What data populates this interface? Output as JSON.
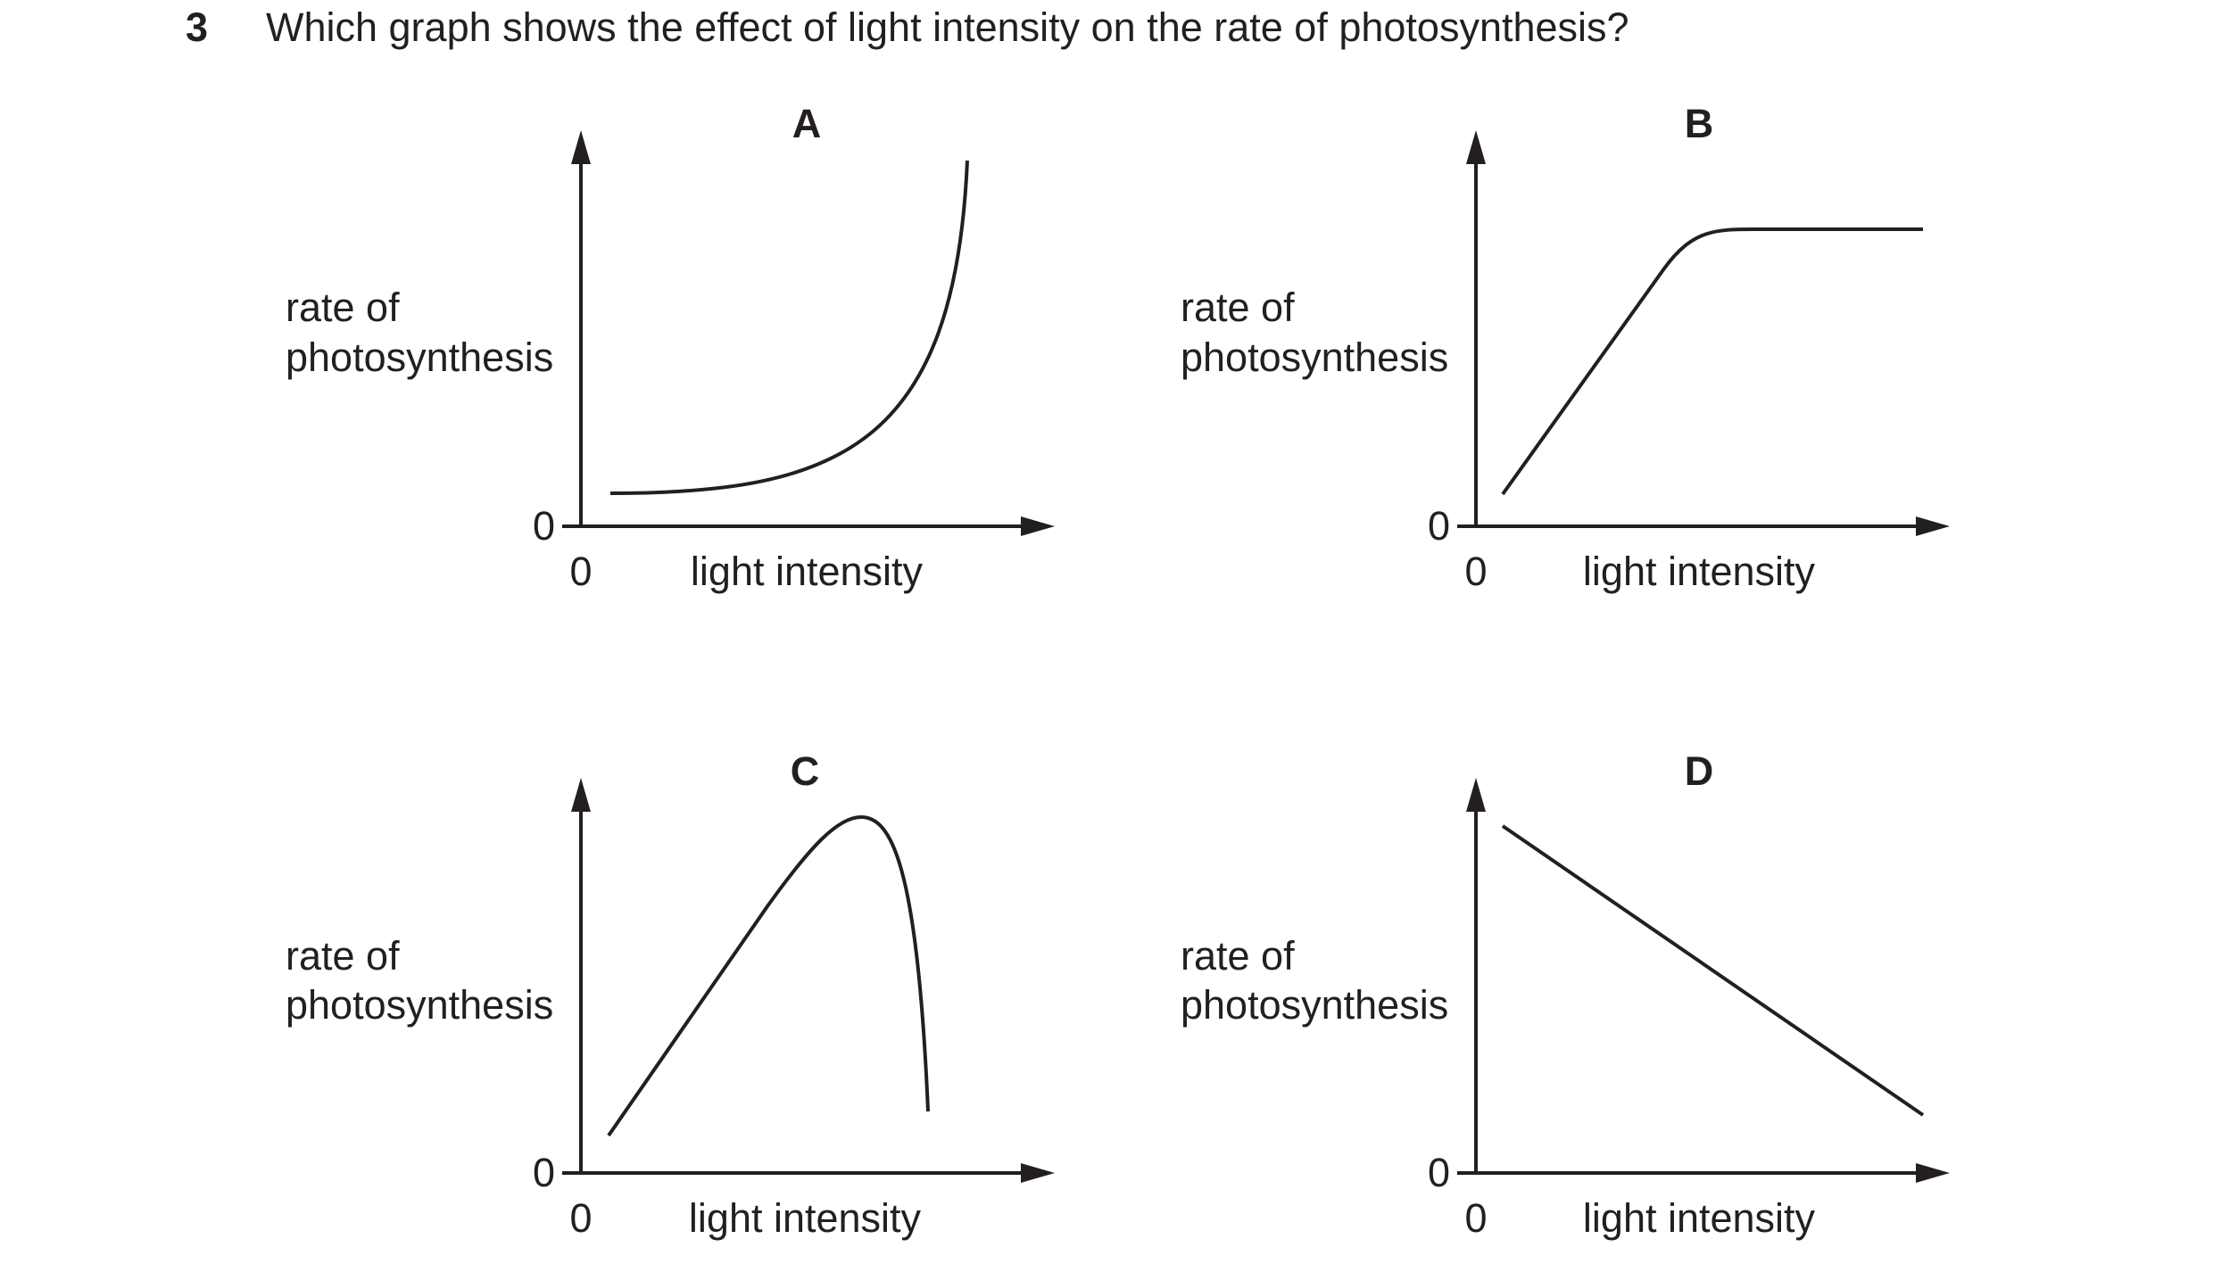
{
  "question": {
    "number": "3",
    "text": "Which graph shows the effect of light intensity on the rate of photosynthesis?"
  },
  "graphs": [
    {
      "letter": "A",
      "y_label_line1": "rate of",
      "y_label_line2": "photosynthesis",
      "x_label": "light intensity",
      "y_origin": "0",
      "x_origin": "0",
      "curve_shape": "exponential increase"
    },
    {
      "letter": "B",
      "y_label_line1": "rate of",
      "y_label_line2": "photosynthesis",
      "x_label": "light intensity",
      "y_origin": "0",
      "x_origin": "0",
      "curve_shape": "linear rise then plateau"
    },
    {
      "letter": "C",
      "y_label_line1": "rate of",
      "y_label_line2": "photosynthesis",
      "x_label": "light intensity",
      "y_origin": "0",
      "x_origin": "0",
      "curve_shape": "rise to peak then sharp fall"
    },
    {
      "letter": "D",
      "y_label_line1": "rate of",
      "y_label_line2": "photosynthesis",
      "x_label": "light intensity",
      "y_origin": "0",
      "x_origin": "0",
      "curve_shape": "linear decrease"
    }
  ]
}
